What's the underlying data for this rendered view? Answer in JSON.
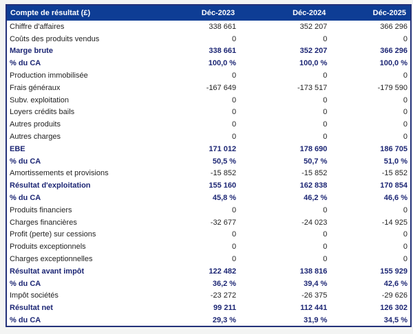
{
  "table": {
    "header": {
      "label": "Compte de résultat (£)",
      "columns": [
        "Déc-2023",
        "Déc-2024",
        "Déc-2025"
      ]
    },
    "rows": [
      {
        "label": "Chiffre d'affaires",
        "values": [
          "338 661",
          "352 207",
          "366 296"
        ],
        "bold": false
      },
      {
        "label": "Coûts des produits vendus",
        "values": [
          "0",
          "0",
          "0"
        ],
        "bold": false
      },
      {
        "label": "Marge brute",
        "values": [
          "338 661",
          "352 207",
          "366 296"
        ],
        "bold": true
      },
      {
        "label": "% du CA",
        "values": [
          "100,0 %",
          "100,0 %",
          "100,0 %"
        ],
        "bold": true
      },
      {
        "label": "Production immobilisée",
        "values": [
          "0",
          "0",
          "0"
        ],
        "bold": false
      },
      {
        "label": "Frais généraux",
        "values": [
          "-167 649",
          "-173 517",
          "-179 590"
        ],
        "bold": false
      },
      {
        "label": "Subv. exploitation",
        "values": [
          "0",
          "0",
          "0"
        ],
        "bold": false
      },
      {
        "label": "Loyers crédits bails",
        "values": [
          "0",
          "0",
          "0"
        ],
        "bold": false
      },
      {
        "label": "Autres produits",
        "values": [
          "0",
          "0",
          "0"
        ],
        "bold": false
      },
      {
        "label": "Autres charges",
        "values": [
          "0",
          "0",
          "0"
        ],
        "bold": false
      },
      {
        "label": "EBE",
        "values": [
          "171 012",
          "178 690",
          "186 705"
        ],
        "bold": true
      },
      {
        "label": "% du CA",
        "values": [
          "50,5 %",
          "50,7 %",
          "51,0 %"
        ],
        "bold": true
      },
      {
        "label": "Amortissements et provisions",
        "values": [
          "-15 852",
          "-15 852",
          "-15 852"
        ],
        "bold": false
      },
      {
        "label": "Résultat d'exploitation",
        "values": [
          "155 160",
          "162 838",
          "170 854"
        ],
        "bold": true
      },
      {
        "label": "% du CA",
        "values": [
          "45,8 %",
          "46,2 %",
          "46,6 %"
        ],
        "bold": true
      },
      {
        "label": "Produits financiers",
        "values": [
          "0",
          "0",
          "0"
        ],
        "bold": false
      },
      {
        "label": "Charges financières",
        "values": [
          "-32 677",
          "-24 023",
          "-14 925"
        ],
        "bold": false
      },
      {
        "label": "Profit (perte) sur cessions",
        "values": [
          "0",
          "0",
          "0"
        ],
        "bold": false
      },
      {
        "label": "Produits exceptionnels",
        "values": [
          "0",
          "0",
          "0"
        ],
        "bold": false
      },
      {
        "label": "Charges exceptionnelles",
        "values": [
          "0",
          "0",
          "0"
        ],
        "bold": false
      },
      {
        "label": "Résultat avant impôt",
        "values": [
          "122 482",
          "138 816",
          "155 929"
        ],
        "bold": true
      },
      {
        "label": "% du CA",
        "values": [
          "36,2 %",
          "39,4 %",
          "42,6 %"
        ],
        "bold": true
      },
      {
        "label": "Impôt sociétés",
        "values": [
          "-23 272",
          "-26 375",
          "-29 626"
        ],
        "bold": false
      },
      {
        "label": "Résultat net",
        "values": [
          "99 211",
          "112 441",
          "126 302"
        ],
        "bold": true
      },
      {
        "label": "% du CA",
        "values": [
          "29,3 %",
          "31,9 %",
          "34,5 %"
        ],
        "bold": true
      }
    ],
    "colors": {
      "header_bg": "#0E3D95",
      "header_text": "#FFFFFF",
      "bold_text": "#1C2674",
      "body_text": "#1F1F1F",
      "border": "#233179",
      "table_bg": "#FFFFFF",
      "page_bg": "#F3F4F3"
    }
  },
  "chart_data": {
    "type": "table",
    "title": "Compte de résultat (£)",
    "columns": [
      "Compte de résultat (£)",
      "Déc-2023",
      "Déc-2024",
      "Déc-2025"
    ],
    "rows": [
      [
        "Chiffre d'affaires",
        "338 661",
        "352 207",
        "366 296"
      ],
      [
        "Coûts des produits vendus",
        "0",
        "0",
        "0"
      ],
      [
        "Marge brute",
        "338 661",
        "352 207",
        "366 296"
      ],
      [
        "% du CA",
        "100,0 %",
        "100,0 %",
        "100,0 %"
      ],
      [
        "Production immobilisée",
        "0",
        "0",
        "0"
      ],
      [
        "Frais généraux",
        "-167 649",
        "-173 517",
        "-179 590"
      ],
      [
        "Subv. exploitation",
        "0",
        "0",
        "0"
      ],
      [
        "Loyers crédits bails",
        "0",
        "0",
        "0"
      ],
      [
        "Autres produits",
        "0",
        "0",
        "0"
      ],
      [
        "Autres charges",
        "0",
        "0",
        "0"
      ],
      [
        "EBE",
        "171 012",
        "178 690",
        "186 705"
      ],
      [
        "% du CA",
        "50,5 %",
        "50,7 %",
        "51,0 %"
      ],
      [
        "Amortissements et provisions",
        "-15 852",
        "-15 852",
        "-15 852"
      ],
      [
        "Résultat d'exploitation",
        "155 160",
        "162 838",
        "170 854"
      ],
      [
        "% du CA",
        "45,8 %",
        "46,2 %",
        "46,6 %"
      ],
      [
        "Produits financiers",
        "0",
        "0",
        "0"
      ],
      [
        "Charges financières",
        "-32 677",
        "-24 023",
        "-14 925"
      ],
      [
        "Profit (perte) sur cessions",
        "0",
        "0",
        "0"
      ],
      [
        "Produits exceptionnels",
        "0",
        "0",
        "0"
      ],
      [
        "Charges exceptionnelles",
        "0",
        "0",
        "0"
      ],
      [
        "Résultat avant impôt",
        "122 482",
        "138 816",
        "155 929"
      ],
      [
        "% du CA",
        "36,2 %",
        "39,4 %",
        "42,6 %"
      ],
      [
        "Impôt sociétés",
        "-23 272",
        "-26 375",
        "-29 626"
      ],
      [
        "Résultat net",
        "99 211",
        "112 441",
        "126 302"
      ],
      [
        "% du CA",
        "29,3 %",
        "31,9 %",
        "34,5 %"
      ]
    ],
    "emphasized_rows": [
      2,
      3,
      10,
      11,
      13,
      14,
      20,
      21,
      23,
      24
    ]
  }
}
